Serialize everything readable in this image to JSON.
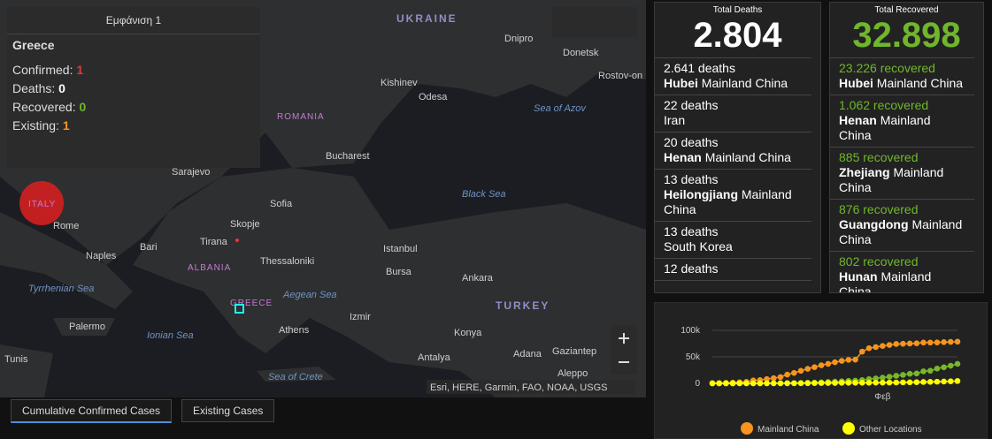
{
  "map": {
    "popup": {
      "title": "Εμφάνιση 1",
      "place": "Greece",
      "rows": [
        {
          "label": "Confirmed:",
          "value": "1"
        },
        {
          "label": "Deaths:",
          "value": "0"
        },
        {
          "label": "Recovered:",
          "value": "0"
        },
        {
          "label": "Existing:",
          "value": "1"
        }
      ]
    },
    "labels": {
      "ukraine": "UKRAINE",
      "romania": "ROMANIA",
      "albania": "ALBANIA",
      "greece": "GREECE",
      "turkey": "TURKEY",
      "italy": "ITALY",
      "dnipro": "Dnipro",
      "donetsk": "Donetsk",
      "rostov": "Rostov-on",
      "kishinev": "Kishinev",
      "odesa": "Odesa",
      "azov": "Sea of Azov",
      "bucharest": "Bucharest",
      "sarajevo": "Sarajevo",
      "sofia": "Sofia",
      "blacksea": "Black Sea",
      "rome": "Rome",
      "skopje": "Skopje",
      "bari": "Bari",
      "tirana": "Tirana",
      "naples": "Naples",
      "thessaloniki": "Thessaloniki",
      "istanbul": "Istanbul",
      "bursa": "Bursa",
      "ankara": "Ankara",
      "tyrrhenian": "Tyrrhenian Sea",
      "aegean": "Aegean Sea",
      "izmir": "Izmir",
      "palermo": "Palermo",
      "ionian": "Ionian Sea",
      "athens": "Athens",
      "konya": "Konya",
      "adana": "Adana",
      "gaziantep": "Gaziantep",
      "tunis": "Tunis",
      "antalya": "Antalya",
      "aleppo": "Aleppo",
      "crete": "Sea of Crete"
    },
    "attribution": "Esri, HERE, Garmin, FAO, NOAA, USGS",
    "tabs": [
      "Cumulative Confirmed Cases",
      "Existing Cases"
    ]
  },
  "deaths": {
    "title": "Total Deaths",
    "total": "2.804",
    "items": [
      {
        "count": "2.641 deaths",
        "region": "Hubei",
        "country": "Mainland China"
      },
      {
        "count": "22 deaths",
        "country": "Iran"
      },
      {
        "count": "20 deaths",
        "region": "Henan",
        "country": "Mainland China"
      },
      {
        "count": "13 deaths",
        "region": "Heilongjiang",
        "country": "Mainland China"
      },
      {
        "count": "13 deaths",
        "country": "South Korea"
      },
      {
        "count": "12 deaths"
      }
    ]
  },
  "recovered": {
    "title": "Total Recovered",
    "total": "32.898",
    "items": [
      {
        "count": "23.226 recovered",
        "region": "Hubei",
        "country": "Mainland China"
      },
      {
        "count": "1.062 recovered",
        "region": "Henan",
        "country": "Mainland China"
      },
      {
        "count": "885 recovered",
        "region": "Zhejiang",
        "country": "Mainland China"
      },
      {
        "count": "876 recovered",
        "region": "Guangdong",
        "country": "Mainland China"
      },
      {
        "count": "802 recovered",
        "region": "Hunan",
        "country": "Mainland China"
      }
    ]
  },
  "chart_data": {
    "type": "line",
    "categories": [
      null,
      null,
      null,
      null,
      null,
      null,
      null,
      null,
      null,
      null,
      null,
      null,
      null,
      null,
      null,
      null,
      null,
      null,
      null,
      null,
      null,
      null,
      null,
      null,
      null,
      "Φεβ",
      null,
      null,
      null,
      null,
      null,
      null,
      null,
      null,
      null,
      null,
      null
    ],
    "series": [
      {
        "name": "Mainland China",
        "color": "#f7941d",
        "values": [
          548,
          643,
          920,
          1406,
          2075,
          2877,
          5509,
          6087,
          8141,
          9802,
          11891,
          16630,
          19716,
          23707,
          27440,
          30587,
          34110,
          36814,
          39829,
          42354,
          44386,
          44759,
          59895,
          66358,
          68413,
          70513,
          72434,
          74211,
          74619,
          75077,
          75550,
          77001,
          77022,
          77241,
          77754,
          78166,
          78600
        ]
      },
      {
        "color": "#76b82a",
        "values": [
          28,
          30,
          36,
          39,
          49,
          58,
          101,
          120,
          135,
          214,
          275,
          463,
          614,
          843,
          1115,
          1477,
          1999,
          2596,
          3219,
          3918,
          4636,
          5082,
          6217,
          7977,
          9298,
          10755,
          12462,
          14206,
          15962,
          18014,
          18704,
          22699,
          23784,
          27905,
          30384,
          33277,
          36711
        ]
      },
      {
        "name": "Other Locations",
        "color": "#ffff00",
        "values": [
          7,
          10,
          21,
          29,
          45,
          62,
          80,
          104,
          126,
          145,
          153,
          182,
          227,
          308,
          395,
          502,
          637,
          661,
          701,
          1074,
          1083,
          1099,
          1134,
          1200,
          1325,
          1390,
          1476,
          1680,
          1860,
          2041,
          2263,
          2538,
          2846,
          3107,
          3476,
          3880,
          4408
        ]
      }
    ],
    "ylim": [
      0,
      100000
    ],
    "yticks": [
      {
        "value": 0,
        "label": "0"
      },
      {
        "value": 50000,
        "label": "50k"
      },
      {
        "value": 100000,
        "label": "100k"
      }
    ]
  }
}
